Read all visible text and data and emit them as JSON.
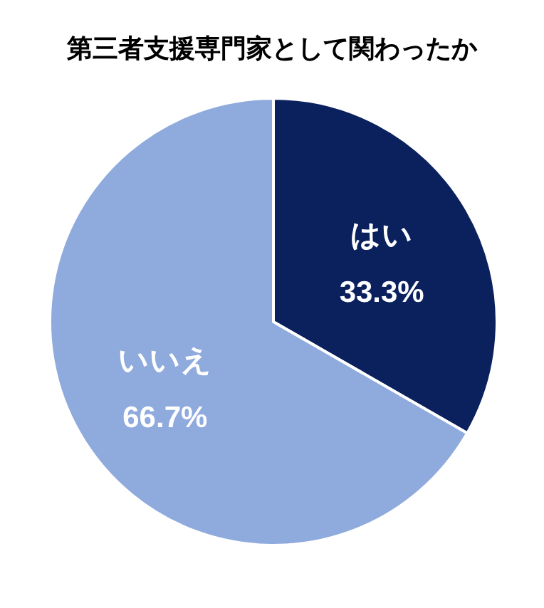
{
  "chart_data": {
    "type": "pie",
    "title": "第三者支援専門家として関わったか",
    "categories": [
      "はい",
      "いいえ"
    ],
    "values": [
      33.3,
      66.7
    ],
    "colors": [
      "#0b215e",
      "#8faadc"
    ],
    "value_labels": [
      "33.3%",
      "66.7%"
    ]
  }
}
